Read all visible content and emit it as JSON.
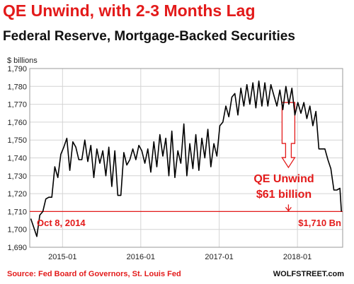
{
  "title": "QE Unwind, with 2-3 Months Lag",
  "subtitle": "Federal Reserve, Mortgage-Backed Securities",
  "source": "Source: Fed Board of Governors, St. Louis Fed",
  "brand": "WOLFSTREET.com",
  "colors": {
    "title": "#e31a1a",
    "line": "#000000",
    "annotation": "#e31a1a",
    "grid": "#d4d4d4"
  },
  "chart_data": {
    "type": "line",
    "ylabel": "$ billions",
    "ylim": [
      1690,
      1790
    ],
    "yticks": [
      1690,
      1700,
      1710,
      1720,
      1730,
      1740,
      1750,
      1760,
      1770,
      1780,
      1790
    ],
    "ytick_labels": [
      "1,690",
      "1,700",
      "1,710",
      "1,720",
      "1,730",
      "1,740",
      "1,750",
      "1,760",
      "1,770",
      "1,780",
      "1,790"
    ],
    "xlim": [
      "2014-08-01",
      "2018-07-31"
    ],
    "xticks": [
      "2015-01-01",
      "2016-01-01",
      "2017-01-01",
      "2018-01-01"
    ],
    "xtick_labels": [
      "2015-01",
      "2016-01",
      "2017-01",
      "2018-01"
    ],
    "grid": true,
    "series": [
      {
        "points": [
          [
            "2014-08-06",
            1706
          ],
          [
            "2014-08-20",
            1701
          ],
          [
            "2014-09-03",
            1696
          ],
          [
            "2014-09-17",
            1708
          ],
          [
            "2014-10-01",
            1710
          ],
          [
            "2014-10-15",
            1717
          ],
          [
            "2014-10-29",
            1718
          ],
          [
            "2014-11-12",
            1718
          ],
          [
            "2014-11-26",
            1735
          ],
          [
            "2014-12-10",
            1729
          ],
          [
            "2014-12-24",
            1742
          ],
          [
            "2015-01-07",
            1746
          ],
          [
            "2015-01-21",
            1751
          ],
          [
            "2015-02-04",
            1733
          ],
          [
            "2015-02-18",
            1749
          ],
          [
            "2015-03-04",
            1746
          ],
          [
            "2015-03-18",
            1739
          ],
          [
            "2015-04-01",
            1739
          ],
          [
            "2015-04-15",
            1750
          ],
          [
            "2015-04-29",
            1738
          ],
          [
            "2015-05-13",
            1747
          ],
          [
            "2015-05-27",
            1729
          ],
          [
            "2015-06-10",
            1745
          ],
          [
            "2015-06-24",
            1737
          ],
          [
            "2015-07-08",
            1744
          ],
          [
            "2015-07-22",
            1730
          ],
          [
            "2015-08-05",
            1746
          ],
          [
            "2015-08-19",
            1724
          ],
          [
            "2015-09-02",
            1744
          ],
          [
            "2015-09-16",
            1719
          ],
          [
            "2015-09-30",
            1719
          ],
          [
            "2015-10-14",
            1743
          ],
          [
            "2015-10-28",
            1736
          ],
          [
            "2015-11-11",
            1739
          ],
          [
            "2015-11-25",
            1745
          ],
          [
            "2015-12-09",
            1739
          ],
          [
            "2015-12-23",
            1747
          ],
          [
            "2016-01-06",
            1744
          ],
          [
            "2016-01-20",
            1737
          ],
          [
            "2016-02-03",
            1745
          ],
          [
            "2016-02-17",
            1732
          ],
          [
            "2016-03-02",
            1749
          ],
          [
            "2016-03-16",
            1735
          ],
          [
            "2016-03-30",
            1753
          ],
          [
            "2016-04-13",
            1741
          ],
          [
            "2016-04-27",
            1751
          ],
          [
            "2016-05-11",
            1730
          ],
          [
            "2016-05-25",
            1755
          ],
          [
            "2016-06-08",
            1729
          ],
          [
            "2016-06-22",
            1744
          ],
          [
            "2016-07-06",
            1737
          ],
          [
            "2016-07-20",
            1759
          ],
          [
            "2016-08-03",
            1730
          ],
          [
            "2016-08-17",
            1748
          ],
          [
            "2016-08-31",
            1734
          ],
          [
            "2016-09-14",
            1753
          ],
          [
            "2016-09-28",
            1733
          ],
          [
            "2016-10-12",
            1751
          ],
          [
            "2016-10-26",
            1740
          ],
          [
            "2016-11-09",
            1756
          ],
          [
            "2016-11-23",
            1735
          ],
          [
            "2016-12-07",
            1748
          ],
          [
            "2016-12-21",
            1741
          ],
          [
            "2017-01-04",
            1758
          ],
          [
            "2017-01-18",
            1760
          ],
          [
            "2017-02-01",
            1769
          ],
          [
            "2017-02-15",
            1763
          ],
          [
            "2017-03-01",
            1774
          ],
          [
            "2017-03-15",
            1776
          ],
          [
            "2017-03-29",
            1764
          ],
          [
            "2017-04-12",
            1779
          ],
          [
            "2017-04-26",
            1769
          ],
          [
            "2017-05-10",
            1781
          ],
          [
            "2017-05-24",
            1770
          ],
          [
            "2017-06-07",
            1782
          ],
          [
            "2017-06-21",
            1768
          ],
          [
            "2017-07-05",
            1783
          ],
          [
            "2017-07-19",
            1769
          ],
          [
            "2017-08-02",
            1782
          ],
          [
            "2017-08-16",
            1769
          ],
          [
            "2017-08-30",
            1781
          ],
          [
            "2017-09-13",
            1775
          ],
          [
            "2017-09-27",
            1769
          ],
          [
            "2017-10-11",
            1778
          ],
          [
            "2017-10-25",
            1767
          ],
          [
            "2017-11-08",
            1780
          ],
          [
            "2017-11-22",
            1770
          ],
          [
            "2017-12-06",
            1779
          ],
          [
            "2017-12-20",
            1764
          ],
          [
            "2018-01-03",
            1771
          ],
          [
            "2018-01-17",
            1765
          ],
          [
            "2018-01-31",
            1771
          ],
          [
            "2018-02-14",
            1762
          ],
          [
            "2018-02-28",
            1769
          ],
          [
            "2018-03-14",
            1758
          ],
          [
            "2018-03-28",
            1766
          ],
          [
            "2018-04-11",
            1745
          ],
          [
            "2018-04-25",
            1745
          ],
          [
            "2018-05-09",
            1745
          ],
          [
            "2018-05-23",
            1739
          ],
          [
            "2018-06-06",
            1734
          ],
          [
            "2018-06-20",
            1722
          ],
          [
            "2018-07-04",
            1722
          ],
          [
            "2018-07-18",
            1723
          ],
          [
            "2018-07-25",
            1710
          ]
        ]
      }
    ],
    "reference_line": {
      "y": 1710
    },
    "annotations": [
      {
        "text": "Oct 8, 2014",
        "x": "2014-10-08",
        "y": 1710
      },
      {
        "text": "$1,710 Bn",
        "x": "2018-07-25",
        "y": 1710
      },
      {
        "text": "QE Unwind",
        "x": "2017-10-20",
        "y": 1720
      },
      {
        "text": "$61 billion",
        "x": "2017-10-20",
        "y": 1714
      }
    ],
    "unwind_arrow": {
      "x": "2017-11-20",
      "from": 1771,
      "to": 1710
    }
  }
}
